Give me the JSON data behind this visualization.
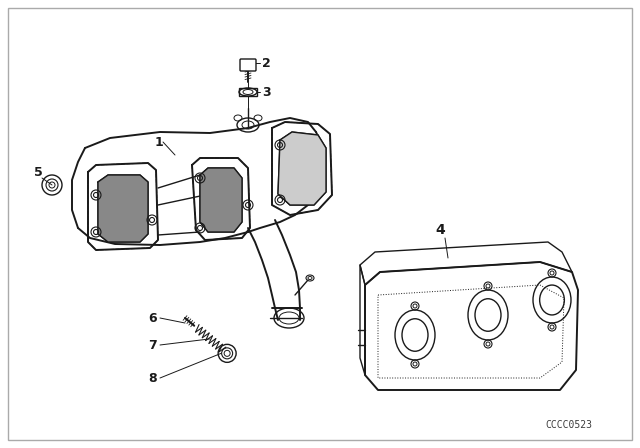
{
  "bg_color": "#ffffff",
  "line_color": "#1a1a1a",
  "border_color": "#aaaaaa",
  "watermark": "CCCC0523",
  "label_fontsize": 9,
  "watermark_fontsize": 7,
  "figsize": [
    6.4,
    4.48
  ],
  "dpi": 100
}
